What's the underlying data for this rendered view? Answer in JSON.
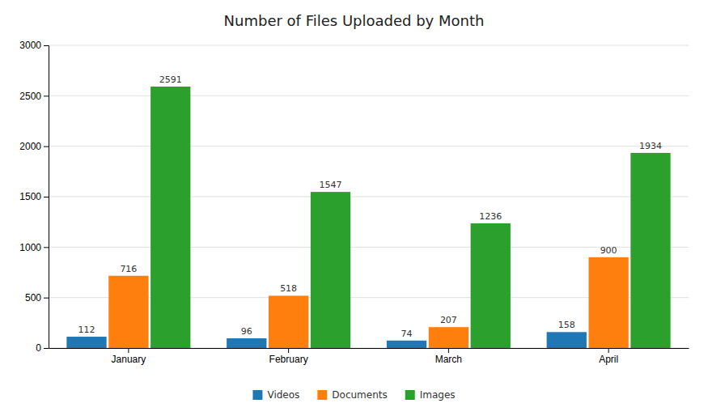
{
  "chart_data": {
    "type": "bar",
    "title": "Number of Files Uploaded by Month",
    "categories": [
      "January",
      "February",
      "March",
      "April"
    ],
    "series": [
      {
        "name": "Videos",
        "values": [
          112,
          96,
          74,
          158
        ]
      },
      {
        "name": "Documents",
        "values": [
          716,
          518,
          207,
          900
        ]
      },
      {
        "name": "Images",
        "values": [
          2591,
          1547,
          1236,
          1934
        ]
      }
    ],
    "ylim": [
      0,
      3000
    ],
    "yticks": [
      0,
      500,
      1000,
      1500,
      2000,
      2500,
      3000
    ],
    "grid": true,
    "legend": "bottom",
    "data_labels": true
  }
}
